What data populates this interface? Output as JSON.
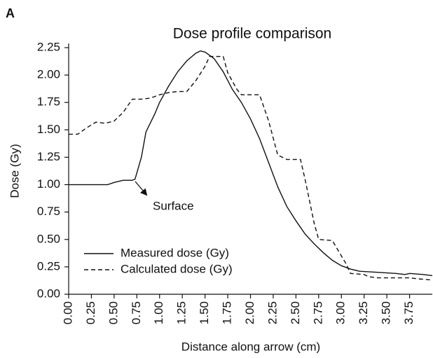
{
  "panel_label": "A",
  "chart_data": {
    "type": "line",
    "title": "Dose profile comparison",
    "xlabel": "Distance along arrow (cm)",
    "ylabel": "Dose (Gy)",
    "annotation": "Surface",
    "legend": "lower left",
    "xlim": [
      0,
      4.0
    ],
    "ylim": [
      0,
      2.25
    ],
    "xticks": [
      {
        "value": 0,
        "label": "0.00"
      },
      0.25,
      {
        "value": 0.5,
        "label": "0.50"
      },
      0.75,
      {
        "value": 1,
        "label": "1.00"
      },
      1.25,
      {
        "value": 1.5,
        "label": "1.50"
      },
      1.75,
      {
        "value": 2,
        "label": "2.00"
      },
      2.25,
      {
        "value": 2.5,
        "label": "2.50"
      },
      2.75,
      {
        "value": 3,
        "label": "3.00"
      },
      3.25,
      {
        "value": 3.5,
        "label": "3.50"
      },
      3.75
    ],
    "yticks": [
      {
        "value": 0,
        "label": "0.00"
      },
      0.25,
      {
        "value": 0.5,
        "label": "0.50"
      },
      0.75,
      {
        "value": 1,
        "label": "1.00"
      },
      1.25,
      {
        "value": 1.5,
        "label": "1.50"
      },
      1.75,
      {
        "value": 2,
        "label": "2.00"
      },
      2.25
    ],
    "series": [
      {
        "name": "Measured dose (Gy)",
        "color": "#111111",
        "dash": "solid",
        "x": [
          0,
          0.43,
          0.5,
          0.6,
          0.7,
          0.73,
          0.8,
          0.85,
          0.95,
          1.0,
          1.1,
          1.2,
          1.3,
          1.4,
          1.45,
          1.5,
          1.6,
          1.7,
          1.8,
          1.9,
          2.0,
          2.1,
          2.2,
          2.3,
          2.4,
          2.5,
          2.6,
          2.7,
          2.8,
          2.9,
          3.0,
          3.1,
          3.2,
          3.4,
          3.6,
          3.7,
          3.75,
          3.9,
          4.0
        ],
        "values": [
          1.0,
          1.0,
          1.02,
          1.04,
          1.04,
          1.05,
          1.25,
          1.48,
          1.65,
          1.75,
          1.9,
          2.03,
          2.13,
          2.2,
          2.22,
          2.21,
          2.15,
          2.03,
          1.87,
          1.75,
          1.6,
          1.42,
          1.2,
          0.98,
          0.8,
          0.67,
          0.55,
          0.46,
          0.38,
          0.31,
          0.26,
          0.23,
          0.21,
          0.2,
          0.19,
          0.18,
          0.19,
          0.18,
          0.17
        ]
      },
      {
        "name": "Calculated dose (Gy)",
        "color": "#111111",
        "dash": "dashed",
        "x": [
          0,
          0.1,
          0.2,
          0.3,
          0.4,
          0.5,
          0.6,
          0.7,
          0.8,
          0.9,
          1.0,
          1.1,
          1.2,
          1.3,
          1.4,
          1.5,
          1.55,
          1.7,
          1.75,
          1.85,
          1.9,
          2.1,
          2.2,
          2.3,
          2.4,
          2.55,
          2.6,
          2.7,
          2.75,
          2.9,
          3.0,
          3.05,
          3.1,
          3.25,
          3.3,
          3.4,
          3.75,
          3.85,
          4.0
        ],
        "values": [
          1.46,
          1.46,
          1.52,
          1.57,
          1.56,
          1.58,
          1.66,
          1.78,
          1.78,
          1.79,
          1.82,
          1.84,
          1.85,
          1.85,
          1.95,
          2.08,
          2.17,
          2.17,
          2.02,
          1.87,
          1.82,
          1.82,
          1.58,
          1.27,
          1.23,
          1.23,
          1.05,
          0.65,
          0.5,
          0.49,
          0.35,
          0.28,
          0.19,
          0.18,
          0.16,
          0.15,
          0.15,
          0.14,
          0.13
        ]
      }
    ]
  }
}
